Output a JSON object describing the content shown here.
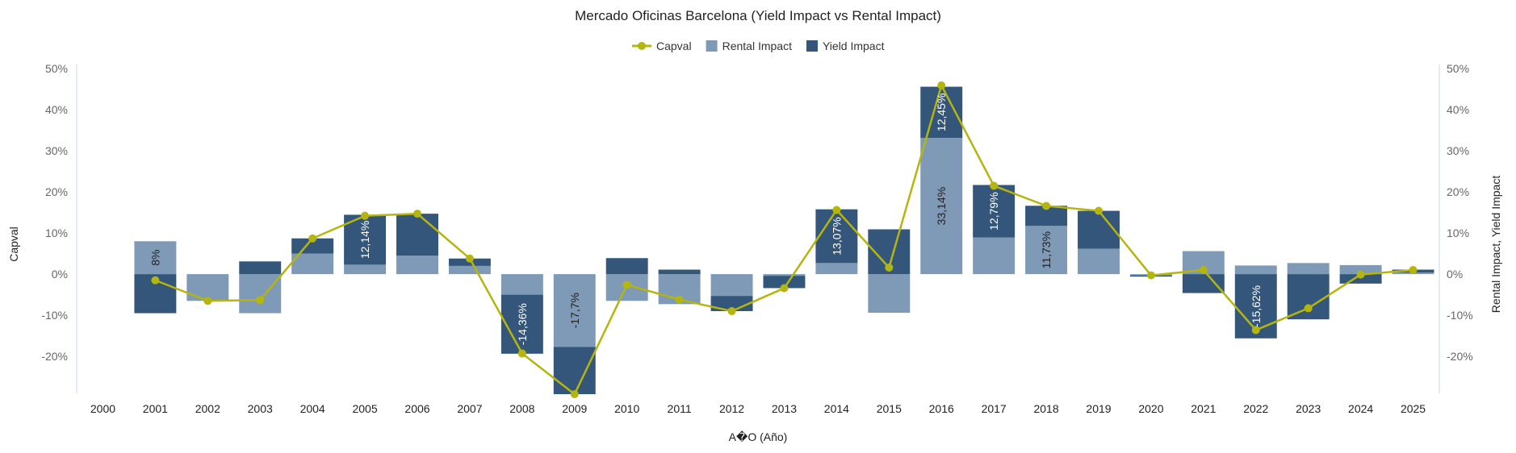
{
  "chart_data": {
    "type": "bar",
    "title": "Mercado Oficinas Barcelona (Yield Impact vs Rental Impact)",
    "xlabel": "A�O (Año)",
    "ylabel_left": "Capval",
    "ylabel_right": "Rental Impact, Yield Impact",
    "ylim": [
      -29,
      51
    ],
    "y_ticks": [
      "50%",
      "40%",
      "30%",
      "20%",
      "10%",
      "0%",
      "-10%",
      "-20%"
    ],
    "y_tick_values": [
      50,
      40,
      30,
      20,
      10,
      0,
      -10,
      -20
    ],
    "legend_position": "top-center",
    "categories": [
      "2000",
      "2001",
      "2002",
      "2003",
      "2004",
      "2005",
      "2006",
      "2007",
      "2008",
      "2009",
      "2010",
      "2011",
      "2012",
      "2013",
      "2014",
      "2015",
      "2016",
      "2017",
      "2018",
      "2019",
      "2020",
      "2021",
      "2022",
      "2023",
      "2024",
      "2025"
    ],
    "series": [
      {
        "name": "Capval",
        "kind": "line",
        "color": "#b5b50f",
        "values": [
          null,
          -1.5,
          -6.5,
          -6.3,
          8.7,
          14.2,
          14.7,
          3.8,
          -19.3,
          -29.2,
          -2.6,
          -6.2,
          -9.0,
          -3.4,
          15.6,
          1.6,
          45.9,
          21.5,
          16.6,
          15.4,
          -0.3,
          1.0,
          -13.6,
          -8.3,
          -0.1,
          1.0
        ]
      },
      {
        "name": "Rental Impact",
        "kind": "bar",
        "color": "#7e9ab6",
        "values": [
          null,
          8.0,
          -6.5,
          -9.5,
          5.0,
          2.3,
          4.5,
          2.0,
          -5.0,
          -17.7,
          -6.5,
          -7.3,
          -5.3,
          -0.4,
          2.7,
          -9.4,
          33.14,
          8.9,
          11.73,
          6.2,
          -0.3,
          5.6,
          2.1,
          2.7,
          2.2,
          0.4
        ]
      },
      {
        "name": "Yield Impact",
        "kind": "bar",
        "color": "#33567a",
        "values": [
          null,
          -9.5,
          0,
          3.1,
          3.7,
          12.14,
          10.2,
          1.8,
          -14.36,
          -11.5,
          3.9,
          1.1,
          -3.7,
          -3.0,
          13.07,
          10.9,
          12.45,
          12.79,
          4.9,
          9.2,
          -0.3,
          -4.6,
          -15.62,
          -11.0,
          -2.3,
          0.7
        ]
      }
    ],
    "data_labels": [
      {
        "category": "2001",
        "series": "Rental Impact",
        "text": "8%"
      },
      {
        "category": "2005",
        "series": "Yield Impact",
        "text": "12,14%"
      },
      {
        "category": "2008",
        "series": "Yield Impact",
        "text": "-14,36%"
      },
      {
        "category": "2009",
        "series": "Rental Impact",
        "text": "-17,7%"
      },
      {
        "category": "2014",
        "series": "Yield Impact",
        "text": "13,07%"
      },
      {
        "category": "2016",
        "series": "Rental Impact",
        "text": "33,14%"
      },
      {
        "category": "2016",
        "series": "Yield Impact",
        "text": "12,45%"
      },
      {
        "category": "2017",
        "series": "Yield Impact",
        "text": "12,79%"
      },
      {
        "category": "2018",
        "series": "Rental Impact",
        "text": "11,73%"
      },
      {
        "category": "2022",
        "series": "Yield Impact",
        "text": "-15,62%"
      }
    ]
  }
}
